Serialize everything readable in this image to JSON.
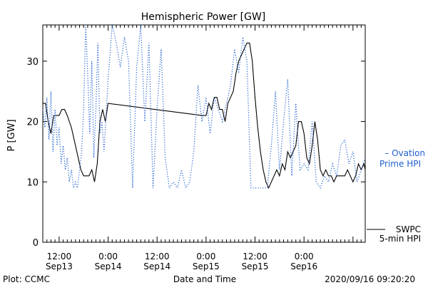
{
  "colors": {
    "axis": "#000000",
    "swpc": "#000000",
    "ovation": "#1f5fd0"
  },
  "chart_data": {
    "type": "line",
    "title": "Hemispheric Power [GW]",
    "xlabel": "Date and Time",
    "ylabel": "P [GW]",
    "ylim": [
      0,
      36
    ],
    "y_ticks": [
      0,
      10,
      20,
      30
    ],
    "xlim": [
      "2020-09-13T08:00",
      "2020-09-16T15:00"
    ],
    "x_ticks": [
      {
        "t": "2020-09-13T12:00",
        "time": "12:00",
        "date": "Sep13"
      },
      {
        "t": "2020-09-14T00:00",
        "time": "0:00",
        "date": "Sep14"
      },
      {
        "t": "2020-09-14T12:00",
        "time": "12:00",
        "date": "Sep14"
      },
      {
        "t": "2020-09-15T00:00",
        "time": "0:00",
        "date": "Sep15"
      },
      {
        "t": "2020-09-15T12:00",
        "time": "12:00",
        "date": "Sep15"
      },
      {
        "t": "2020-09-16T00:00",
        "time": "0:00",
        "date": "Sep16"
      }
    ],
    "legend": {
      "swpc": [
        "SWPC",
        "5-min HPI"
      ],
      "ovation": [
        "– Ovation",
        "Prime HPI"
      ]
    },
    "footer": {
      "left": "Plot: CCMC",
      "right": "2020/09/16 09:20:20"
    },
    "series": [
      {
        "name": "SWPC 5-min HPI",
        "style": "solid",
        "points": [
          [
            "2020-09-13T08:00",
            23
          ],
          [
            "2020-09-13T08:40",
            23
          ],
          [
            "2020-09-13T09:20",
            20
          ],
          [
            "2020-09-13T10:00",
            18
          ],
          [
            "2020-09-13T10:40",
            21
          ],
          [
            "2020-09-13T11:20",
            21
          ],
          [
            "2020-09-13T12:00",
            21
          ],
          [
            "2020-09-13T12:40",
            22
          ],
          [
            "2020-09-13T13:20",
            22
          ],
          [
            "2020-09-13T14:00",
            21
          ],
          [
            "2020-09-13T15:00",
            19
          ],
          [
            "2020-09-13T16:00",
            16
          ],
          [
            "2020-09-13T16:40",
            14
          ],
          [
            "2020-09-13T17:20",
            12
          ],
          [
            "2020-09-13T18:00",
            11
          ],
          [
            "2020-09-13T18:40",
            11
          ],
          [
            "2020-09-13T19:20",
            11
          ],
          [
            "2020-09-13T20:00",
            12
          ],
          [
            "2020-09-13T20:40",
            10
          ],
          [
            "2020-09-13T21:20",
            13
          ],
          [
            "2020-09-13T22:00",
            20
          ],
          [
            "2020-09-13T22:40",
            22
          ],
          [
            "2020-09-13T23:20",
            20
          ],
          [
            "2020-09-14T00:00",
            23
          ],
          [
            "2020-09-14T23:00",
            21
          ],
          [
            "2020-09-15T00:00",
            21
          ],
          [
            "2020-09-15T00:40",
            23
          ],
          [
            "2020-09-15T01:20",
            22
          ],
          [
            "2020-09-15T02:00",
            24
          ],
          [
            "2020-09-15T02:40",
            24
          ],
          [
            "2020-09-15T03:20",
            22
          ],
          [
            "2020-09-15T04:00",
            22
          ],
          [
            "2020-09-15T04:40",
            20
          ],
          [
            "2020-09-15T05:20",
            23
          ],
          [
            "2020-09-15T06:00",
            24
          ],
          [
            "2020-09-15T06:40",
            25
          ],
          [
            "2020-09-15T07:20",
            28
          ],
          [
            "2020-09-15T08:00",
            30
          ],
          [
            "2020-09-15T08:40",
            31
          ],
          [
            "2020-09-15T09:20",
            32
          ],
          [
            "2020-09-15T10:00",
            33
          ],
          [
            "2020-09-15T10:40",
            33
          ],
          [
            "2020-09-15T11:20",
            30
          ],
          [
            "2020-09-15T12:00",
            24
          ],
          [
            "2020-09-15T12:40",
            19
          ],
          [
            "2020-09-15T13:20",
            15
          ],
          [
            "2020-09-15T14:00",
            12
          ],
          [
            "2020-09-15T14:40",
            10
          ],
          [
            "2020-09-15T15:20",
            9
          ],
          [
            "2020-09-15T16:00",
            10
          ],
          [
            "2020-09-15T16:40",
            11
          ],
          [
            "2020-09-15T17:20",
            12
          ],
          [
            "2020-09-15T18:00",
            11
          ],
          [
            "2020-09-15T18:40",
            13
          ],
          [
            "2020-09-15T19:20",
            12
          ],
          [
            "2020-09-15T20:00",
            15
          ],
          [
            "2020-09-15T20:40",
            14
          ],
          [
            "2020-09-15T21:20",
            15
          ],
          [
            "2020-09-15T22:00",
            16
          ],
          [
            "2020-09-15T22:40",
            20
          ],
          [
            "2020-09-15T23:20",
            20
          ],
          [
            "2020-09-16T00:00",
            18
          ],
          [
            "2020-09-16T00:40",
            14
          ],
          [
            "2020-09-16T01:20",
            13
          ],
          [
            "2020-09-16T02:00",
            16
          ],
          [
            "2020-09-16T02:40",
            20
          ],
          [
            "2020-09-16T03:20",
            17
          ],
          [
            "2020-09-16T04:00",
            12
          ],
          [
            "2020-09-16T04:40",
            11
          ],
          [
            "2020-09-16T05:20",
            12
          ],
          [
            "2020-09-16T06:00",
            11
          ],
          [
            "2020-09-16T06:40",
            11
          ],
          [
            "2020-09-16T07:20",
            10
          ],
          [
            "2020-09-16T08:00",
            11
          ],
          [
            "2020-09-16T08:40",
            11
          ],
          [
            "2020-09-16T09:20",
            11
          ],
          [
            "2020-09-16T10:00",
            11
          ],
          [
            "2020-09-16T10:40",
            12
          ],
          [
            "2020-09-16T11:20",
            11
          ],
          [
            "2020-09-16T12:00",
            10
          ],
          [
            "2020-09-16T12:40",
            11
          ],
          [
            "2020-09-16T13:20",
            13
          ],
          [
            "2020-09-16T14:00",
            12
          ],
          [
            "2020-09-16T14:40",
            13
          ],
          [
            "2020-09-16T15:00",
            12
          ]
        ]
      },
      {
        "name": "Ovation Prime HPI",
        "style": "dotted",
        "points": [
          [
            "2020-09-13T08:00",
            22
          ],
          [
            "2020-09-13T08:30",
            19
          ],
          [
            "2020-09-13T09:00",
            24
          ],
          [
            "2020-09-13T09:30",
            17
          ],
          [
            "2020-09-13T10:00",
            25
          ],
          [
            "2020-09-13T10:30",
            15
          ],
          [
            "2020-09-13T11:00",
            22
          ],
          [
            "2020-09-13T11:30",
            16
          ],
          [
            "2020-09-13T12:00",
            19
          ],
          [
            "2020-09-13T12:30",
            13
          ],
          [
            "2020-09-13T13:00",
            16
          ],
          [
            "2020-09-13T13:30",
            12
          ],
          [
            "2020-09-13T14:00",
            14
          ],
          [
            "2020-09-13T14:30",
            10
          ],
          [
            "2020-09-13T15:00",
            12
          ],
          [
            "2020-09-13T15:30",
            9
          ],
          [
            "2020-09-13T16:00",
            10
          ],
          [
            "2020-09-13T16:30",
            9
          ],
          [
            "2020-09-13T17:00",
            12
          ],
          [
            "2020-09-13T17:30",
            15
          ],
          [
            "2020-09-13T18:00",
            22
          ],
          [
            "2020-09-13T18:30",
            36
          ],
          [
            "2020-09-13T19:00",
            28
          ],
          [
            "2020-09-13T19:30",
            18
          ],
          [
            "2020-09-13T20:00",
            30
          ],
          [
            "2020-09-13T20:30",
            14
          ],
          [
            "2020-09-13T21:00",
            22
          ],
          [
            "2020-09-13T21:30",
            33
          ],
          [
            "2020-09-13T22:00",
            18
          ],
          [
            "2020-09-13T22:30",
            20
          ],
          [
            "2020-09-13T23:00",
            15
          ],
          [
            "2020-09-14T00:00",
            27
          ],
          [
            "2020-09-14T01:00",
            36
          ],
          [
            "2020-09-14T02:00",
            33
          ],
          [
            "2020-09-14T03:00",
            29
          ],
          [
            "2020-09-14T04:00",
            34
          ],
          [
            "2020-09-14T05:00",
            30
          ],
          [
            "2020-09-14T06:00",
            9
          ],
          [
            "2020-09-14T07:00",
            29
          ],
          [
            "2020-09-14T08:00",
            36
          ],
          [
            "2020-09-14T09:00",
            20
          ],
          [
            "2020-09-14T10:00",
            33
          ],
          [
            "2020-09-14T11:00",
            9
          ],
          [
            "2020-09-14T12:00",
            22
          ],
          [
            "2020-09-14T13:00",
            32
          ],
          [
            "2020-09-14T14:00",
            14
          ],
          [
            "2020-09-14T15:00",
            9
          ],
          [
            "2020-09-14T16:00",
            10
          ],
          [
            "2020-09-14T17:00",
            9
          ],
          [
            "2020-09-14T18:00",
            12
          ],
          [
            "2020-09-14T19:00",
            9
          ],
          [
            "2020-09-14T20:00",
            10
          ],
          [
            "2020-09-14T21:00",
            15
          ],
          [
            "2020-09-14T22:00",
            26
          ],
          [
            "2020-09-14T23:00",
            20
          ],
          [
            "2020-09-15T00:00",
            24
          ],
          [
            "2020-09-15T01:00",
            18
          ],
          [
            "2020-09-15T02:00",
            24
          ],
          [
            "2020-09-15T03:00",
            22
          ],
          [
            "2020-09-15T04:00",
            20
          ],
          [
            "2020-09-15T05:00",
            23
          ],
          [
            "2020-09-15T06:00",
            26
          ],
          [
            "2020-09-15T07:00",
            32
          ],
          [
            "2020-09-15T08:00",
            28
          ],
          [
            "2020-09-15T09:00",
            34
          ],
          [
            "2020-09-15T10:00",
            30
          ],
          [
            "2020-09-15T11:00",
            9
          ],
          [
            "2020-09-15T12:00",
            9
          ],
          [
            "2020-09-15T13:00",
            9
          ],
          [
            "2020-09-15T14:00",
            9
          ],
          [
            "2020-09-15T15:00",
            9
          ],
          [
            "2020-09-15T16:00",
            16
          ],
          [
            "2020-09-15T17:00",
            25
          ],
          [
            "2020-09-15T18:00",
            12
          ],
          [
            "2020-09-15T19:00",
            20
          ],
          [
            "2020-09-15T20:00",
            27
          ],
          [
            "2020-09-15T21:00",
            11
          ],
          [
            "2020-09-15T22:00",
            23
          ],
          [
            "2020-09-15T23:00",
            12
          ],
          [
            "2020-09-16T00:00",
            13
          ],
          [
            "2020-09-16T01:00",
            12
          ],
          [
            "2020-09-16T02:00",
            20
          ],
          [
            "2020-09-16T03:00",
            10
          ],
          [
            "2020-09-16T04:00",
            9
          ],
          [
            "2020-09-16T05:00",
            11
          ],
          [
            "2020-09-16T06:00",
            10
          ],
          [
            "2020-09-16T07:00",
            13
          ],
          [
            "2020-09-16T08:00",
            11
          ],
          [
            "2020-09-16T09:00",
            16
          ],
          [
            "2020-09-16T10:00",
            17
          ],
          [
            "2020-09-16T11:00",
            13
          ],
          [
            "2020-09-16T12:00",
            15
          ],
          [
            "2020-09-16T13:00",
            10
          ],
          [
            "2020-09-16T14:00",
            12
          ],
          [
            "2020-09-16T15:00",
            14
          ]
        ]
      }
    ]
  }
}
